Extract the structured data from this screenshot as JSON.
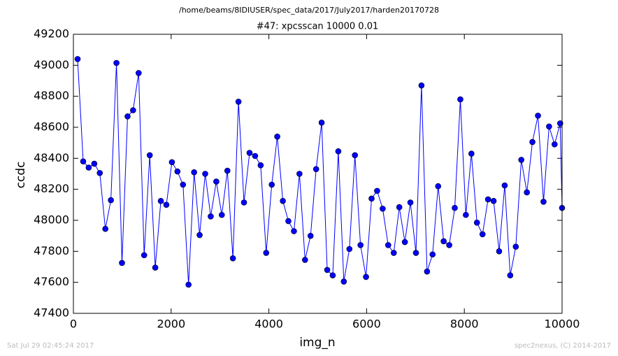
{
  "chart_data": {
    "type": "line",
    "title": "/home/beams/8IDIUSER/spec_data/2017/July2017/harden20170728",
    "subtitle": "#47: xpcsscan 10000 0.01",
    "x_label": "img_n",
    "y_label": "ccdc",
    "footer_left": "Sat Jul 29 02:45:24 2017",
    "footer_right": "spec2nexus, (C) 2014-2017",
    "xlim": [
      0,
      10000
    ],
    "xticks": [
      0,
      2000,
      4000,
      6000,
      8000,
      10000
    ],
    "ylim": [
      47400,
      49200
    ],
    "yticks": [
      47400,
      47600,
      47800,
      48000,
      48200,
      48400,
      48600,
      48800,
      49000,
      49200
    ],
    "grid": false,
    "series": [
      {
        "color": "#0000ff",
        "x": [
          86,
          200,
          313,
          427,
          540,
          654,
          767,
          881,
          994,
          1108,
          1221,
          1335,
          1448,
          1562,
          1675,
          1789,
          1902,
          2016,
          2129,
          2243,
          2356,
          2470,
          2583,
          2697,
          2810,
          2924,
          3037,
          3151,
          3264,
          3378,
          3491,
          3605,
          3718,
          3832,
          3945,
          4059,
          4172,
          4286,
          4399,
          4513,
          4626,
          4740,
          4853,
          4967,
          5080,
          5194,
          5307,
          5421,
          5534,
          5648,
          5761,
          5875,
          5988,
          6102,
          6215,
          6329,
          6442,
          6556,
          6669,
          6783,
          6896,
          7010,
          7123,
          7237,
          7350,
          7464,
          7577,
          7691,
          7804,
          7918,
          8031,
          8145,
          8258,
          8372,
          8485,
          8599,
          8712,
          8826,
          8939,
          9053,
          9166,
          9280,
          9393,
          9507,
          9620,
          9734,
          9847,
          9961,
          10000
        ],
        "values": [
          49040,
          48380,
          48340,
          48365,
          48305,
          47945,
          48130,
          49015,
          47725,
          48670,
          48710,
          48950,
          47775,
          48420,
          47695,
          48125,
          48100,
          48375,
          48315,
          48230,
          47585,
          48310,
          47905,
          48300,
          48025,
          48250,
          48035,
          48320,
          47755,
          48765,
          48115,
          48435,
          48415,
          48355,
          47790,
          48230,
          48540,
          48125,
          47995,
          47930,
          48300,
          47745,
          47900,
          48330,
          48630,
          47680,
          47645,
          48445,
          47605,
          47815,
          48420,
          47840,
          47635,
          48140,
          48190,
          48075,
          47840,
          47790,
          48085,
          47860,
          48115,
          47790,
          48870,
          47670,
          47780,
          48220,
          47865,
          47840,
          48080,
          48780,
          48035,
          48430,
          47985,
          47910,
          48135,
          48125,
          47800,
          48225,
          47645,
          47830,
          48390,
          48180,
          48505,
          48675,
          48120,
          48605,
          48490,
          48625,
          48080
        ]
      }
    ]
  }
}
